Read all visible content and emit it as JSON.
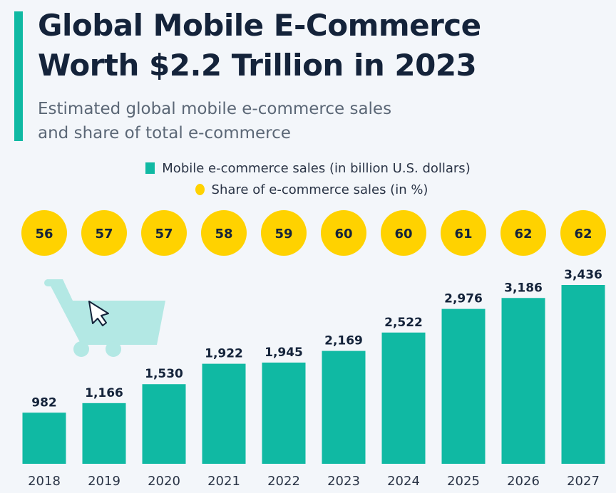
{
  "header": {
    "title_line1": "Global Mobile E-Commerce",
    "title_line2": "Worth $2.2 Trillion in 2023",
    "subtitle_line1": "Estimated global mobile e-commerce sales",
    "subtitle_line2": "and share of total e-commerce"
  },
  "colors": {
    "bar": "#10b9a3",
    "circle": "#ffd200",
    "accent": "#10b9a3",
    "cart": "#b3e8e4"
  },
  "icons": {
    "decoration": "shopping-cart-with-cursor-icon"
  },
  "chart_data": {
    "type": "bar",
    "categories": [
      "2018",
      "2019",
      "2020",
      "2021",
      "2022",
      "2023",
      "2024",
      "2025",
      "2026",
      "2027"
    ],
    "series": [
      {
        "name": "Mobile e-commerce sales (in billion U.S. dollars)",
        "values": [
          982,
          1166,
          1530,
          1922,
          1945,
          2169,
          2522,
          2976,
          3186,
          3436
        ],
        "labels": [
          "982",
          "1,166",
          "1,530",
          "1,922",
          "1,945",
          "2,169",
          "2,522",
          "2,976",
          "3,186",
          "3,436"
        ]
      },
      {
        "name": "Share of e-commerce sales (in %)",
        "values": [
          56,
          57,
          57,
          58,
          59,
          60,
          60,
          61,
          62,
          62
        ]
      }
    ],
    "legend": [
      "Mobile e-commerce sales (in billion U.S. dollars)",
      "Share of e-commerce sales (in %)"
    ],
    "grid": false,
    "legend_placement": "top-center"
  }
}
